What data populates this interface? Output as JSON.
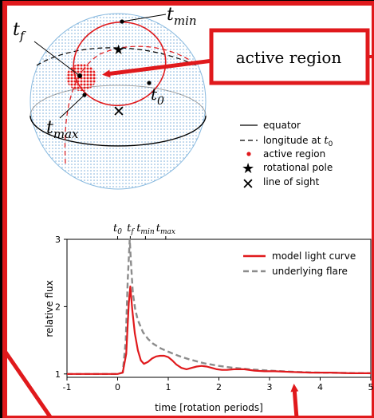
{
  "annotation": {
    "label": "active region",
    "box_color": "#e0191c",
    "arrow_color": "#e0191c"
  },
  "sphere_labels": {
    "tf": "t",
    "tf_sub": "f",
    "tmin": "t",
    "tmin_sub": "min",
    "t0": "t",
    "t0_sub": "0",
    "tmax": "t",
    "tmax_sub": "max"
  },
  "legend_top": {
    "equator": "equator",
    "longitude": "longitude at",
    "longitude_sym": "t",
    "longitude_sub": "0",
    "active_region": "active region",
    "rotational_pole": "rotational pole",
    "line_of_sight": "line of sight"
  },
  "chart_data": {
    "type": "line",
    "xlabel": "time [rotation periods]",
    "ylabel": "relative flux",
    "xlim": [
      -1,
      5
    ],
    "ylim": [
      0.95,
      3
    ],
    "xticks": [
      "-1",
      "0",
      "1",
      "2",
      "3",
      "4",
      "5"
    ],
    "yticks": [
      "1",
      "2",
      "3"
    ],
    "top_ticks": [
      {
        "sym": "t",
        "sub": "0",
        "x": 0
      },
      {
        "sym": "t",
        "sub": "f",
        "x": 0.25
      },
      {
        "sym": "t",
        "sub": "min",
        "x": 0.55
      },
      {
        "sym": "t",
        "sub": "max",
        "x": 0.95
      }
    ],
    "legend": "top-right",
    "series": [
      {
        "name": "model light curve",
        "color": "#e0191c",
        "dash": "solid",
        "x": [
          -1,
          0,
          0.1,
          0.17,
          0.22,
          0.25,
          0.29,
          0.34,
          0.4,
          0.46,
          0.52,
          0.6,
          0.68,
          0.76,
          0.84,
          0.92,
          1.0,
          1.08,
          1.16,
          1.26,
          1.36,
          1.46,
          1.56,
          1.66,
          1.76,
          1.86,
          1.96,
          2.06,
          2.16,
          2.3,
          2.5,
          2.7,
          2.9,
          3.1,
          3.4,
          3.8,
          4.2,
          4.6,
          5.0
        ],
        "y": [
          1.0,
          1.0,
          1.02,
          1.3,
          2.05,
          2.3,
          1.95,
          1.6,
          1.35,
          1.2,
          1.15,
          1.18,
          1.23,
          1.26,
          1.27,
          1.27,
          1.25,
          1.2,
          1.14,
          1.09,
          1.07,
          1.09,
          1.11,
          1.12,
          1.11,
          1.09,
          1.07,
          1.06,
          1.06,
          1.07,
          1.07,
          1.05,
          1.04,
          1.04,
          1.03,
          1.02,
          1.02,
          1.01,
          1.01
        ]
      },
      {
        "name": "underlying flare",
        "color": "#8c8c8c",
        "dash": "dashed",
        "x": [
          -1,
          0,
          0.1,
          0.16,
          0.2,
          0.24,
          0.26,
          0.3,
          0.35,
          0.4,
          0.5,
          0.6,
          0.7,
          0.85,
          1.0,
          1.2,
          1.4,
          1.7,
          2.0,
          2.3,
          2.6,
          3.0,
          3.5,
          4.0,
          4.5,
          5.0
        ],
        "y": [
          1.0,
          1.0,
          1.02,
          1.5,
          2.4,
          3.0,
          2.7,
          2.2,
          1.95,
          1.8,
          1.62,
          1.52,
          1.45,
          1.38,
          1.33,
          1.27,
          1.22,
          1.16,
          1.12,
          1.09,
          1.07,
          1.05,
          1.03,
          1.02,
          1.015,
          1.01
        ]
      }
    ]
  }
}
